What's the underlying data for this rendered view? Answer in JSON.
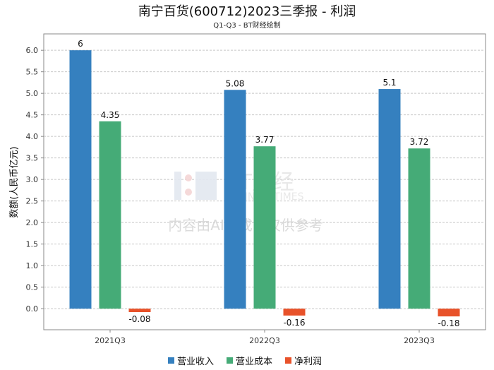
{
  "chart_data": {
    "type": "bar",
    "title": "南宁百货(600712)2023三季报 - 利润",
    "subtitle": "Q1-Q3 - BT财经绘制",
    "xlabel": "",
    "ylabel": "数额(人民币亿元)",
    "categories": [
      "2021Q3",
      "2022Q3",
      "2023Q3"
    ],
    "series": [
      {
        "name": "营业收入",
        "color": "#3580BF",
        "values": [
          6,
          5.08,
          5.1
        ],
        "labels": [
          "6",
          "5.08",
          "5.1"
        ]
      },
      {
        "name": "营业成本",
        "color": "#45AB77",
        "values": [
          4.35,
          3.77,
          3.72
        ],
        "labels": [
          "4.35",
          "3.77",
          "3.72"
        ]
      },
      {
        "name": "净利润",
        "color": "#E8522A",
        "values": [
          -0.08,
          -0.16,
          -0.18
        ],
        "labels": [
          "-0.08",
          "-0.16",
          "-0.18"
        ]
      }
    ],
    "yticks": [
      "0.0",
      "0.5",
      "1.0",
      "1.5",
      "2.0",
      "2.5",
      "3.0",
      "3.5",
      "4.0",
      "4.5",
      "5.0",
      "5.5",
      "6.0"
    ],
    "ylim": [
      -0.49,
      6.38
    ],
    "grid": true,
    "legend": "bottom"
  },
  "watermark": {
    "logo": "BT财经",
    "logo_sub": "BUSINESSTIMES",
    "text": "内容由AI生成，仅供参考"
  }
}
